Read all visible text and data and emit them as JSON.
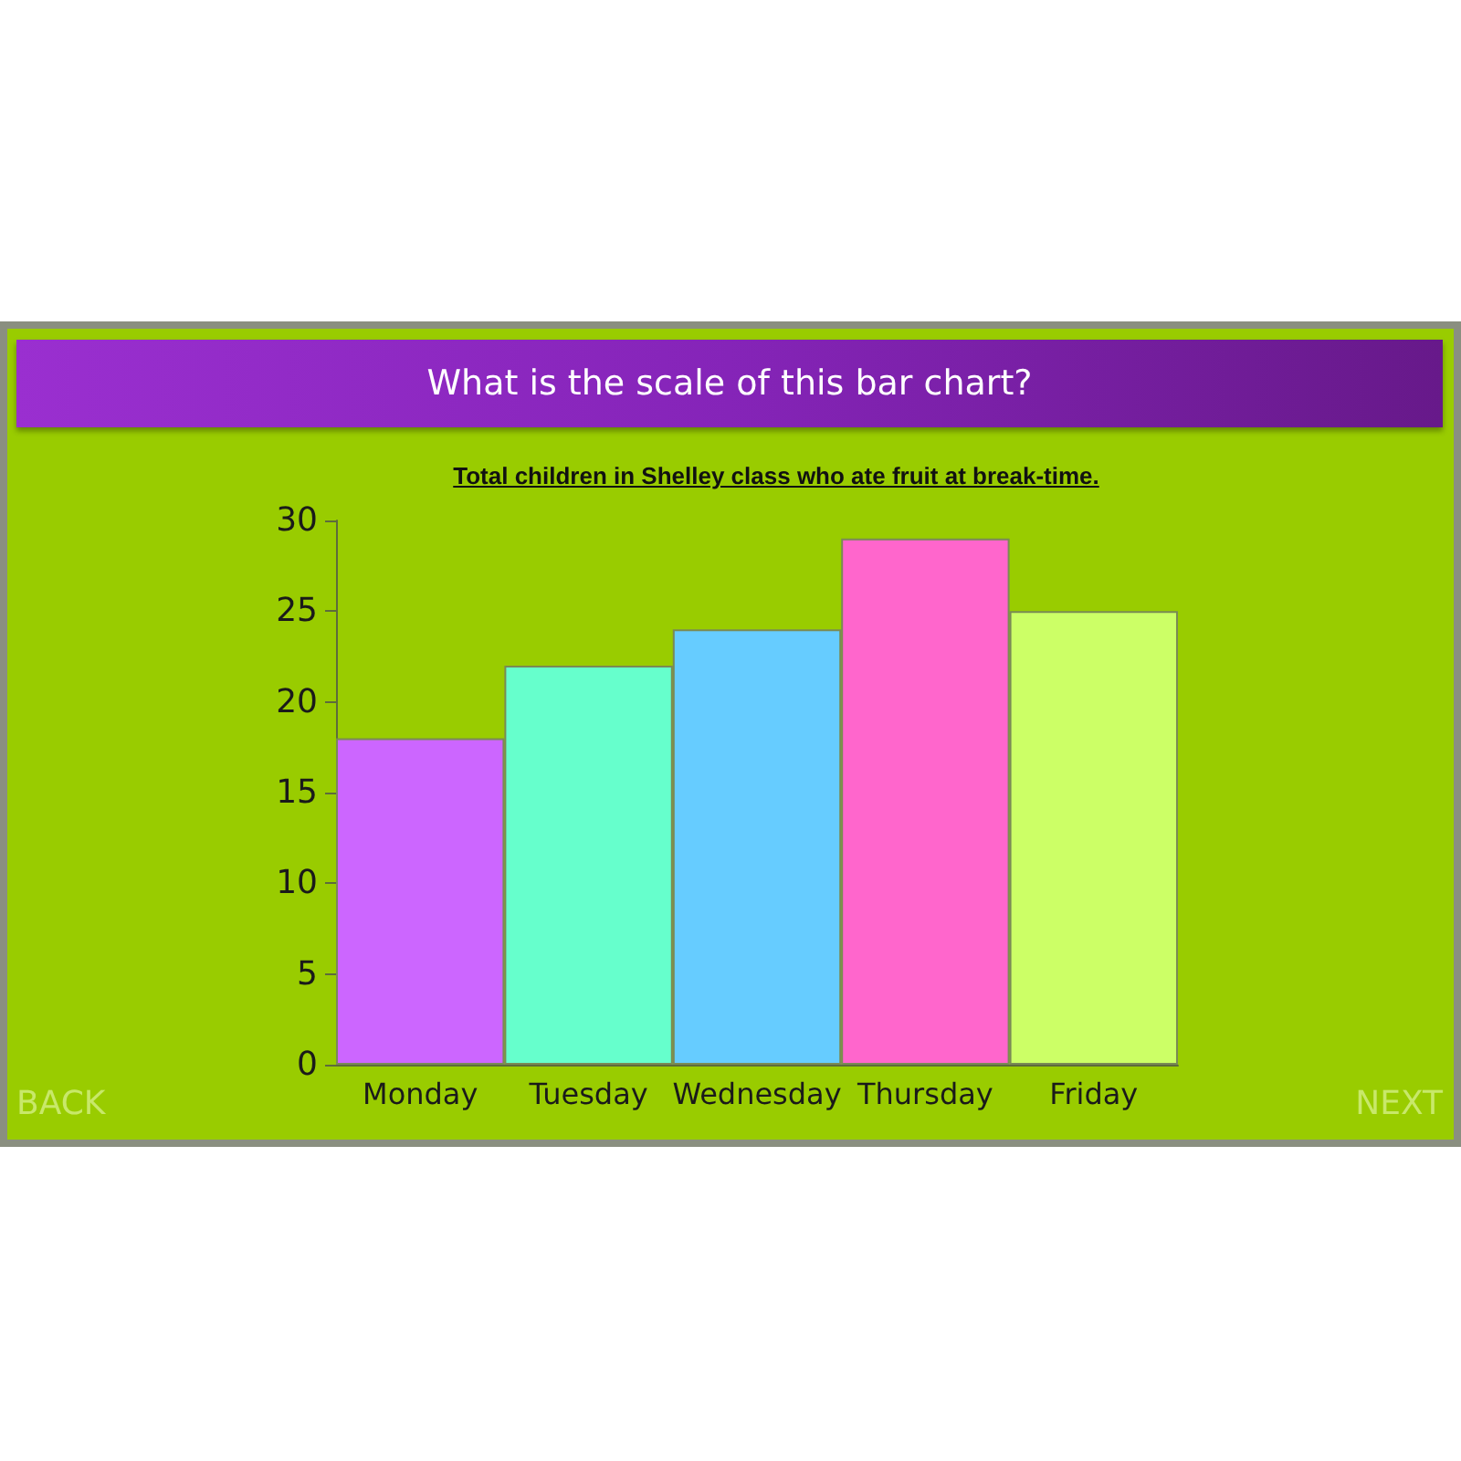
{
  "chart_data": {
    "type": "bar",
    "title": "What is the scale of this bar chart?",
    "subtitle": "Total children in Shelley class who ate fruit at break-time.",
    "categories": [
      "Monday",
      "Tuesday",
      "Wednesday",
      "Thursday",
      "Friday"
    ],
    "values": [
      18,
      22,
      24,
      29,
      25
    ],
    "colors": [
      "#cc66ff",
      "#66ffcc",
      "#66ccff",
      "#ff66cc",
      "#ccff66"
    ],
    "ylim": [
      0,
      30
    ],
    "yticks": [
      0,
      5,
      10,
      15,
      20,
      25,
      30
    ],
    "annotations": [
      "BACK",
      "NEXT"
    ]
  }
}
